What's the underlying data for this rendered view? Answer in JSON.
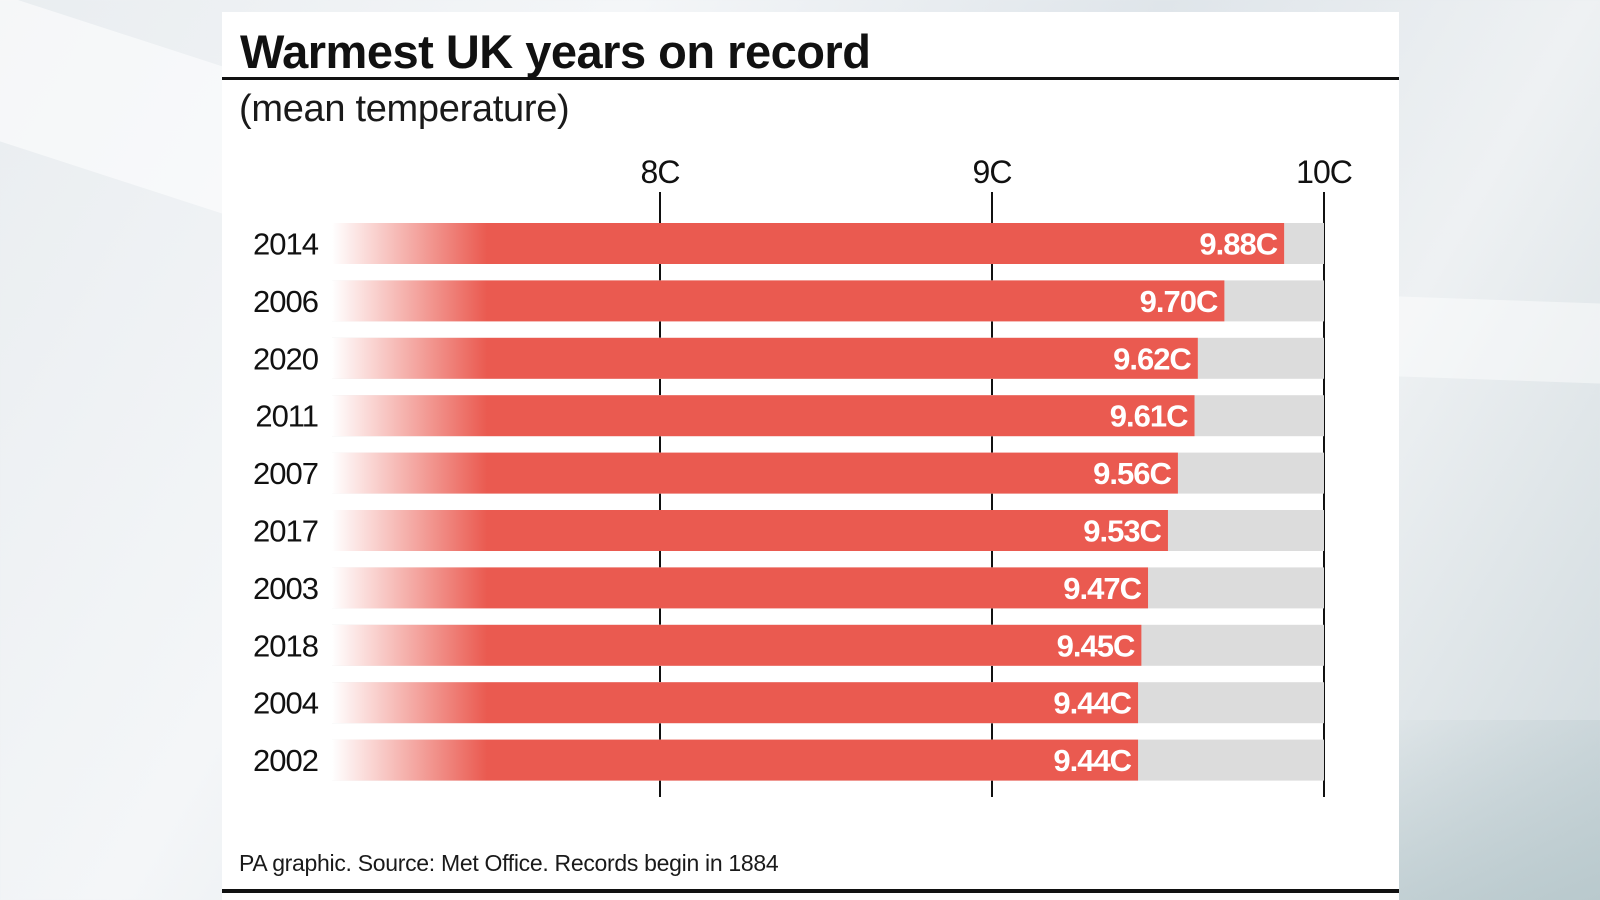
{
  "page": {
    "title": "Warmest UK years on record",
    "subtitle": "(mean temperature)",
    "source": "PA graphic. Source: Met Office. Records begin in 1884"
  },
  "colors": {
    "bar": "#ea5a50",
    "track": "#dcdcdc",
    "axis": "#111111",
    "label": "#ffffff"
  },
  "chart_data": {
    "type": "bar",
    "orientation": "horizontal",
    "title": "Warmest UK years on record",
    "subtitle": "(mean temperature)",
    "xlabel": "",
    "ylabel": "",
    "xlim": [
      7,
      10
    ],
    "ticks": [
      8,
      9,
      10
    ],
    "tick_labels": [
      "8C",
      "9C",
      "10C"
    ],
    "grid": true,
    "categories": [
      "2014",
      "2006",
      "2020",
      "2011",
      "2007",
      "2017",
      "2003",
      "2018",
      "2004",
      "2002"
    ],
    "values": [
      9.88,
      9.7,
      9.62,
      9.61,
      9.56,
      9.53,
      9.47,
      9.45,
      9.44,
      9.44
    ],
    "value_labels": [
      "9.88C",
      "9.70C",
      "9.62C",
      "9.61C",
      "9.56C",
      "9.53C",
      "9.47C",
      "9.45C",
      "9.44C",
      "9.44C"
    ]
  }
}
